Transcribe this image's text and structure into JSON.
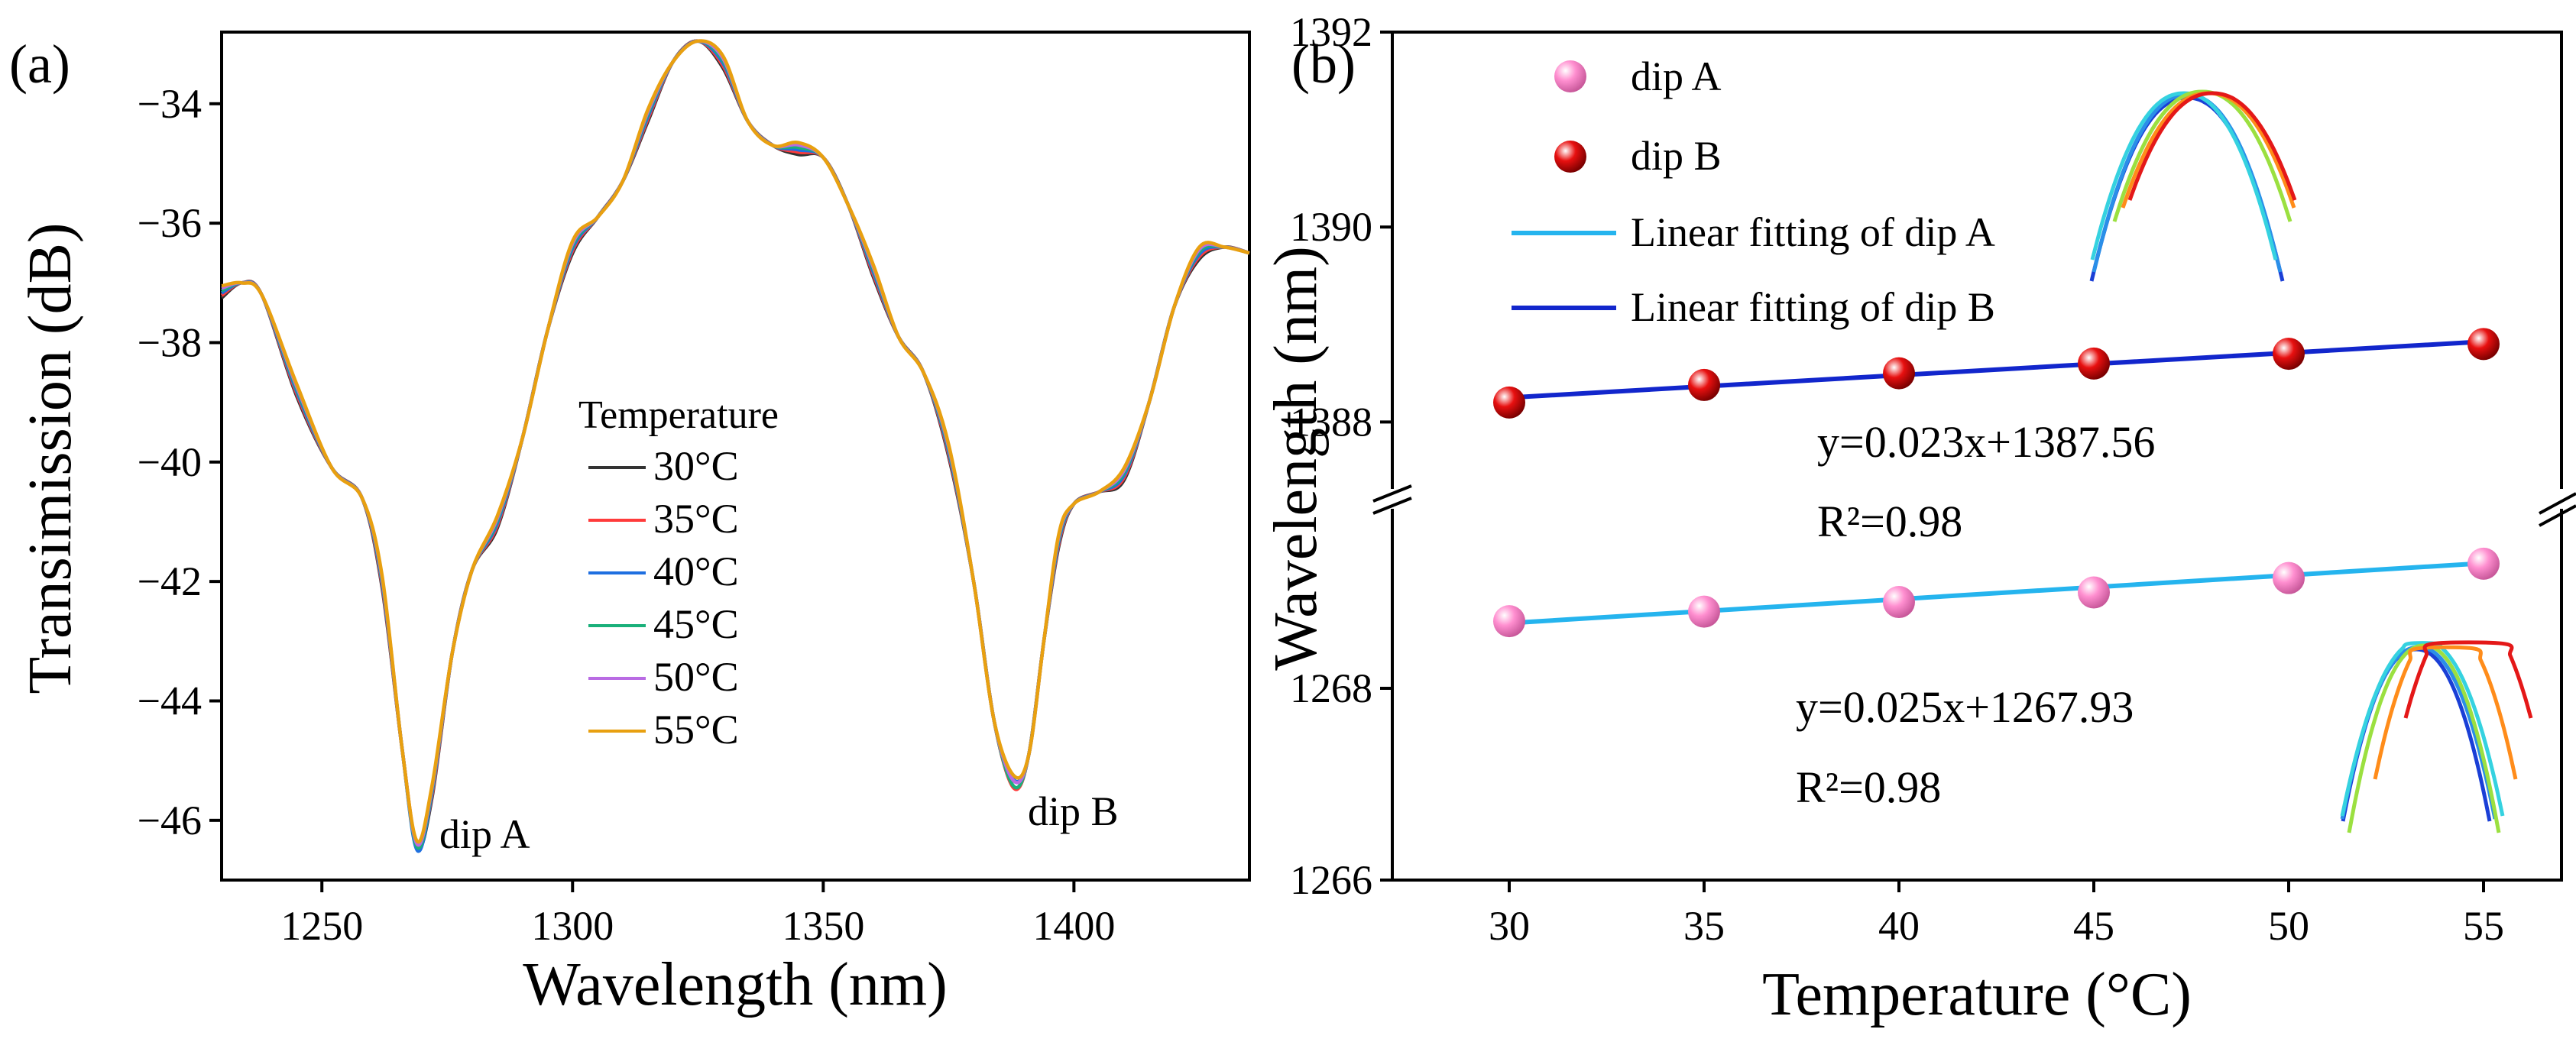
{
  "chart_data": [
    {
      "panel": "(a)",
      "type": "line",
      "xlabel": "Wavelength (nm)",
      "ylabel": "Transimission (dB)",
      "xlim": [
        1230,
        1435
      ],
      "ylim": [
        -47,
        -32.8
      ],
      "xticks": [
        1250,
        1300,
        1350,
        1400
      ],
      "yticks": [
        -46,
        -44,
        -42,
        -40,
        -38,
        -36,
        -34
      ],
      "legend_title": "Temperature",
      "annotations": [
        "dip A",
        "dip B"
      ],
      "series": [
        {
          "name": "30°C",
          "color": "#333333",
          "dipA_min": -46.45,
          "dipB_min": -45.35
        },
        {
          "name": "35°C",
          "color": "#ff3b3b",
          "dipA_min": -46.4,
          "dipB_min": -45.4
        },
        {
          "name": "40°C",
          "color": "#1f6fe0",
          "dipA_min": -46.5,
          "dipB_min": -45.3
        },
        {
          "name": "45°C",
          "color": "#1ab07a",
          "dipA_min": -46.45,
          "dipB_min": -45.45
        },
        {
          "name": "50°C",
          "color": "#b96be3",
          "dipA_min": -46.4,
          "dipB_min": -45.4
        },
        {
          "name": "55°C",
          "color": "#e8a010",
          "dipA_min": -46.35,
          "dipB_min": -45.35
        }
      ],
      "curve_points": {
        "x": [
          1230,
          1234,
          1238,
          1245,
          1252,
          1258,
          1262,
          1266,
          1269,
          1272,
          1276,
          1280,
          1285,
          1290,
          1295,
          1300,
          1305,
          1310,
          1315,
          1320,
          1325,
          1330,
          1335,
          1340,
          1345,
          1350,
          1355,
          1360,
          1365,
          1370,
          1375,
          1380,
          1384,
          1388,
          1391,
          1394,
          1397,
          1400,
          1405,
          1410,
          1415,
          1420,
          1425,
          1430,
          1435
        ],
        "y": [
          -37.15,
          -37.0,
          -37.2,
          -38.8,
          -40.1,
          -40.6,
          -42.0,
          -44.8,
          -46.45,
          -45.5,
          -43.2,
          -41.8,
          -41.0,
          -39.6,
          -37.8,
          -36.4,
          -35.9,
          -35.3,
          -34.2,
          -33.3,
          -32.95,
          -33.3,
          -34.3,
          -34.7,
          -34.75,
          -34.9,
          -35.7,
          -36.8,
          -37.9,
          -38.5,
          -39.8,
          -42.0,
          -44.3,
          -45.4,
          -44.9,
          -43.0,
          -41.3,
          -40.7,
          -40.5,
          -40.2,
          -39.0,
          -37.4,
          -36.5,
          -36.4,
          -36.5
        ]
      }
    },
    {
      "panel": "(b)",
      "type": "scatter",
      "xlabel": "Temperature (°C)",
      "ylabel": "Wavelength (nm)",
      "xlim": [
        27,
        57
      ],
      "xticks": [
        30,
        35,
        40,
        45,
        50,
        55
      ],
      "broken_y_axis": true,
      "upper_ylim": [
        1387,
        1392
      ],
      "upper_yticks": [
        1388,
        1390,
        1392
      ],
      "lower_ylim": [
        1266,
        1270
      ],
      "lower_yticks": [
        1266,
        1268
      ],
      "x": [
        30,
        35,
        40,
        45,
        50,
        55
      ],
      "series": [
        {
          "name": "dip A",
          "color": "#ff8fd0",
          "values": [
            1268.7,
            1268.8,
            1268.9,
            1269.0,
            1269.15,
            1269.3
          ]
        },
        {
          "name": "dip B",
          "color": "#e81010",
          "values": [
            1388.2,
            1388.38,
            1388.5,
            1388.6,
            1388.7,
            1388.8
          ]
        }
      ],
      "fits": [
        {
          "name": "Linear fitting of dip A",
          "color": "#25b4ee",
          "slope": 0.025,
          "intercept": 1267.93,
          "equation": "y=0.025x+1267.93",
          "r2_text": "R²=0.98"
        },
        {
          "name": "Linear fitting of dip B",
          "color": "#1226cc",
          "slope": 0.023,
          "intercept": 1387.56,
          "equation": "y=0.023x+1387.56",
          "r2_text": "R²=0.98"
        }
      ],
      "inset_colors": [
        "#1a3fd6",
        "#2a8fe8",
        "#35d2e0",
        "#9be040",
        "#ff8c1a",
        "#e41818"
      ]
    }
  ]
}
